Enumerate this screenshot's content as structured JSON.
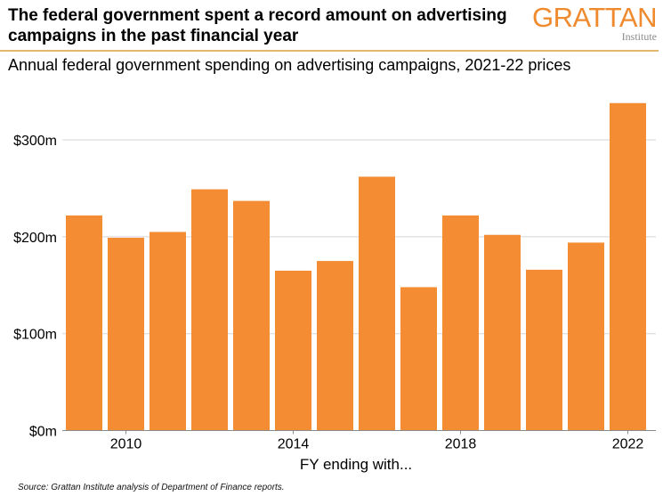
{
  "header": {
    "title": "The federal government spent a record amount on advertising campaigns in the past financial year",
    "subtitle": "Annual federal government spending on advertising campaigns, 2021-22 prices",
    "logo_main": "GRATTAN",
    "logo_sub": "Institute"
  },
  "footer": {
    "source": "Source: Grattan Institute analysis of Department of Finance reports."
  },
  "colors": {
    "bar": "#f48c34",
    "brand": "#f08a2e",
    "divider": "#e3b66d",
    "gridline": "#d5d5d5"
  },
  "chart_data": {
    "type": "bar",
    "title": "Annual federal government spending on advertising campaigns, 2021-22 prices",
    "xlabel": "FY ending with...",
    "ylabel": "",
    "categories": [
      "2009",
      "2010",
      "2011",
      "2012",
      "2013",
      "2014",
      "2015",
      "2016",
      "2017",
      "2018",
      "2019",
      "2020",
      "2021",
      "2022"
    ],
    "values": [
      222,
      199,
      205,
      249,
      237,
      165,
      175,
      262,
      148,
      222,
      202,
      166,
      194,
      338
    ],
    "units": "$ millions",
    "ylim": [
      0,
      340
    ],
    "yticks": [
      0,
      100,
      200,
      300
    ],
    "ytick_labels": [
      "$0m",
      "$100m",
      "$200m",
      "$300m"
    ],
    "xticks": [
      "2010",
      "2014",
      "2018",
      "2022"
    ],
    "grid": true,
    "legend": "none"
  }
}
